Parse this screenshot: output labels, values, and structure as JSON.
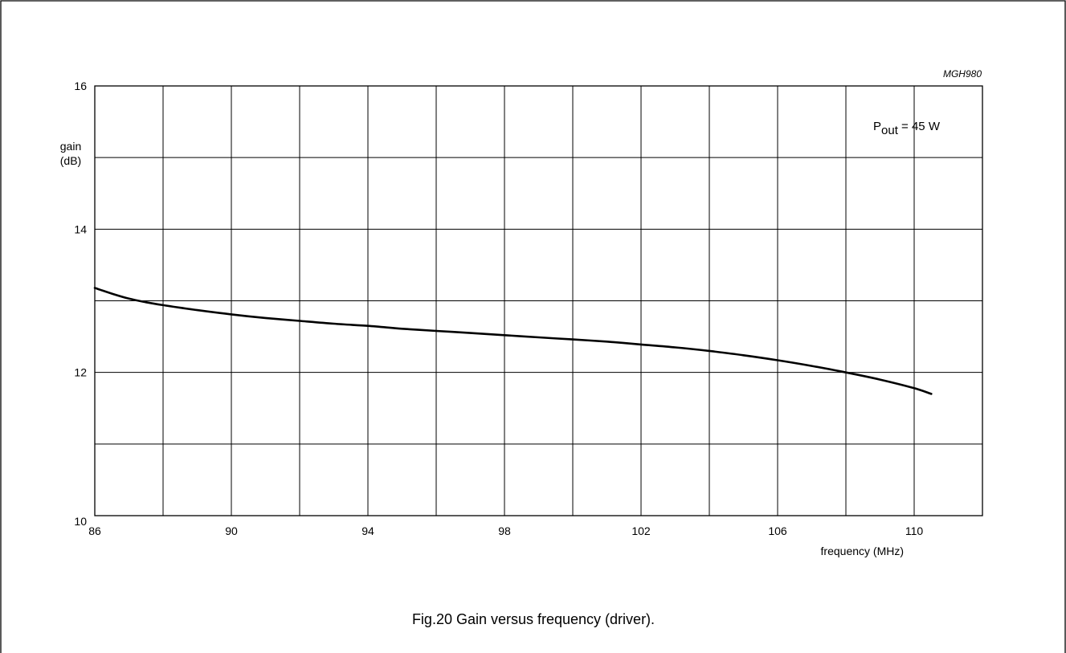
{
  "figure": {
    "code": "MGH980",
    "caption": "Fig.20  Gain versus frequency (driver)."
  },
  "chart_data": {
    "type": "line",
    "ylabel": [
      "gain",
      "(dB)"
    ],
    "xlabel": "frequency (MHz)",
    "xlim": [
      86,
      112
    ],
    "ylim": [
      10,
      16
    ],
    "x_ticks": [
      86,
      90,
      94,
      98,
      102,
      106,
      110
    ],
    "y_ticks": [
      10,
      12,
      14,
      16
    ],
    "x_grid_step": 2,
    "y_grid_step": 1,
    "grid": true,
    "annotation": {
      "main": "P",
      "sub": "out",
      "rest": " = 45 W",
      "placement": "top-right"
    },
    "series": [
      {
        "x": [
          86,
          86.5,
          87,
          87.5,
          88,
          89,
          90,
          91,
          92,
          93,
          94,
          95,
          96,
          97,
          98,
          99,
          100,
          101,
          102,
          103,
          104,
          105,
          106,
          107,
          108,
          109,
          110,
          110.5
        ],
        "y": [
          13.18,
          13.1,
          13.03,
          12.98,
          12.94,
          12.87,
          12.81,
          12.76,
          12.72,
          12.68,
          12.65,
          12.61,
          12.58,
          12.55,
          12.52,
          12.49,
          12.46,
          12.43,
          12.39,
          12.35,
          12.3,
          12.24,
          12.17,
          12.09,
          12.0,
          11.9,
          11.78,
          11.7
        ]
      }
    ]
  }
}
